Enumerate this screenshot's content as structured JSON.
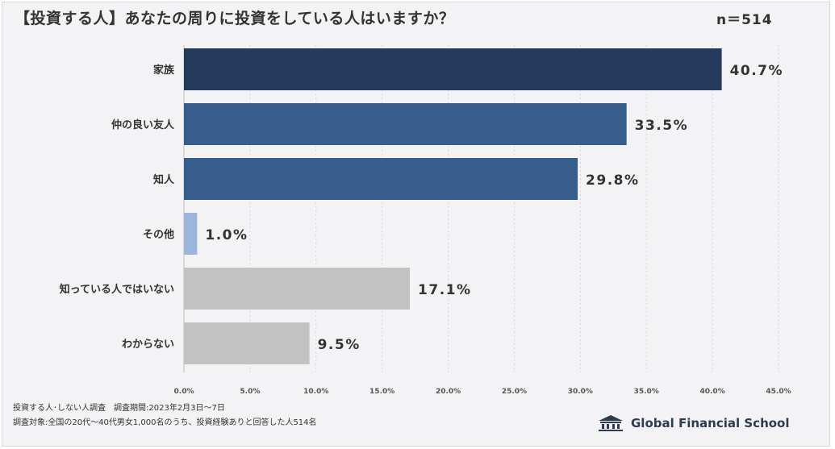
{
  "header": {
    "title": "【投資する人】あなたの周りに投資をしている人はいますか？",
    "sample_size": "n＝514"
  },
  "chart_data": {
    "type": "bar",
    "orientation": "horizontal",
    "title": "【投資する人】あなたの周りに投資をしている人はいますか？",
    "categories": [
      "家族",
      "仲の良い友人",
      "知人",
      "その他",
      "知っている人ではいない",
      "わからない"
    ],
    "values": [
      40.7,
      33.5,
      29.8,
      1.0,
      17.1,
      9.5
    ],
    "value_labels": [
      "40.7%",
      "33.5%",
      "29.8%",
      "1.0%",
      "17.1%",
      "9.5%"
    ],
    "bar_colors": [
      "#243b5c",
      "#365d8c",
      "#365d8c",
      "#9bb5db",
      "#c2c2c2",
      "#c2c2c2"
    ],
    "xlim": [
      0,
      45
    ],
    "xticks": [
      0,
      5,
      10,
      15,
      20,
      25,
      30,
      35,
      40,
      45
    ],
    "xtick_labels": [
      "0.0%",
      "5.0%",
      "10.0%",
      "15.0%",
      "20.0%",
      "25.0%",
      "30.0%",
      "35.0%",
      "40.0%",
      "45.0%"
    ],
    "xlabel": "",
    "ylabel": "",
    "grid": true,
    "gridline_color": "#d6d6d6"
  },
  "footer": {
    "note1": "投資する人･しない人調査　調査期間:2023年2月3日〜7日",
    "note2": "調査対象:全国の20代〜40代男女1,000名のうち、投資経験ありと回答した人514名",
    "brand": "Global Financial School"
  }
}
